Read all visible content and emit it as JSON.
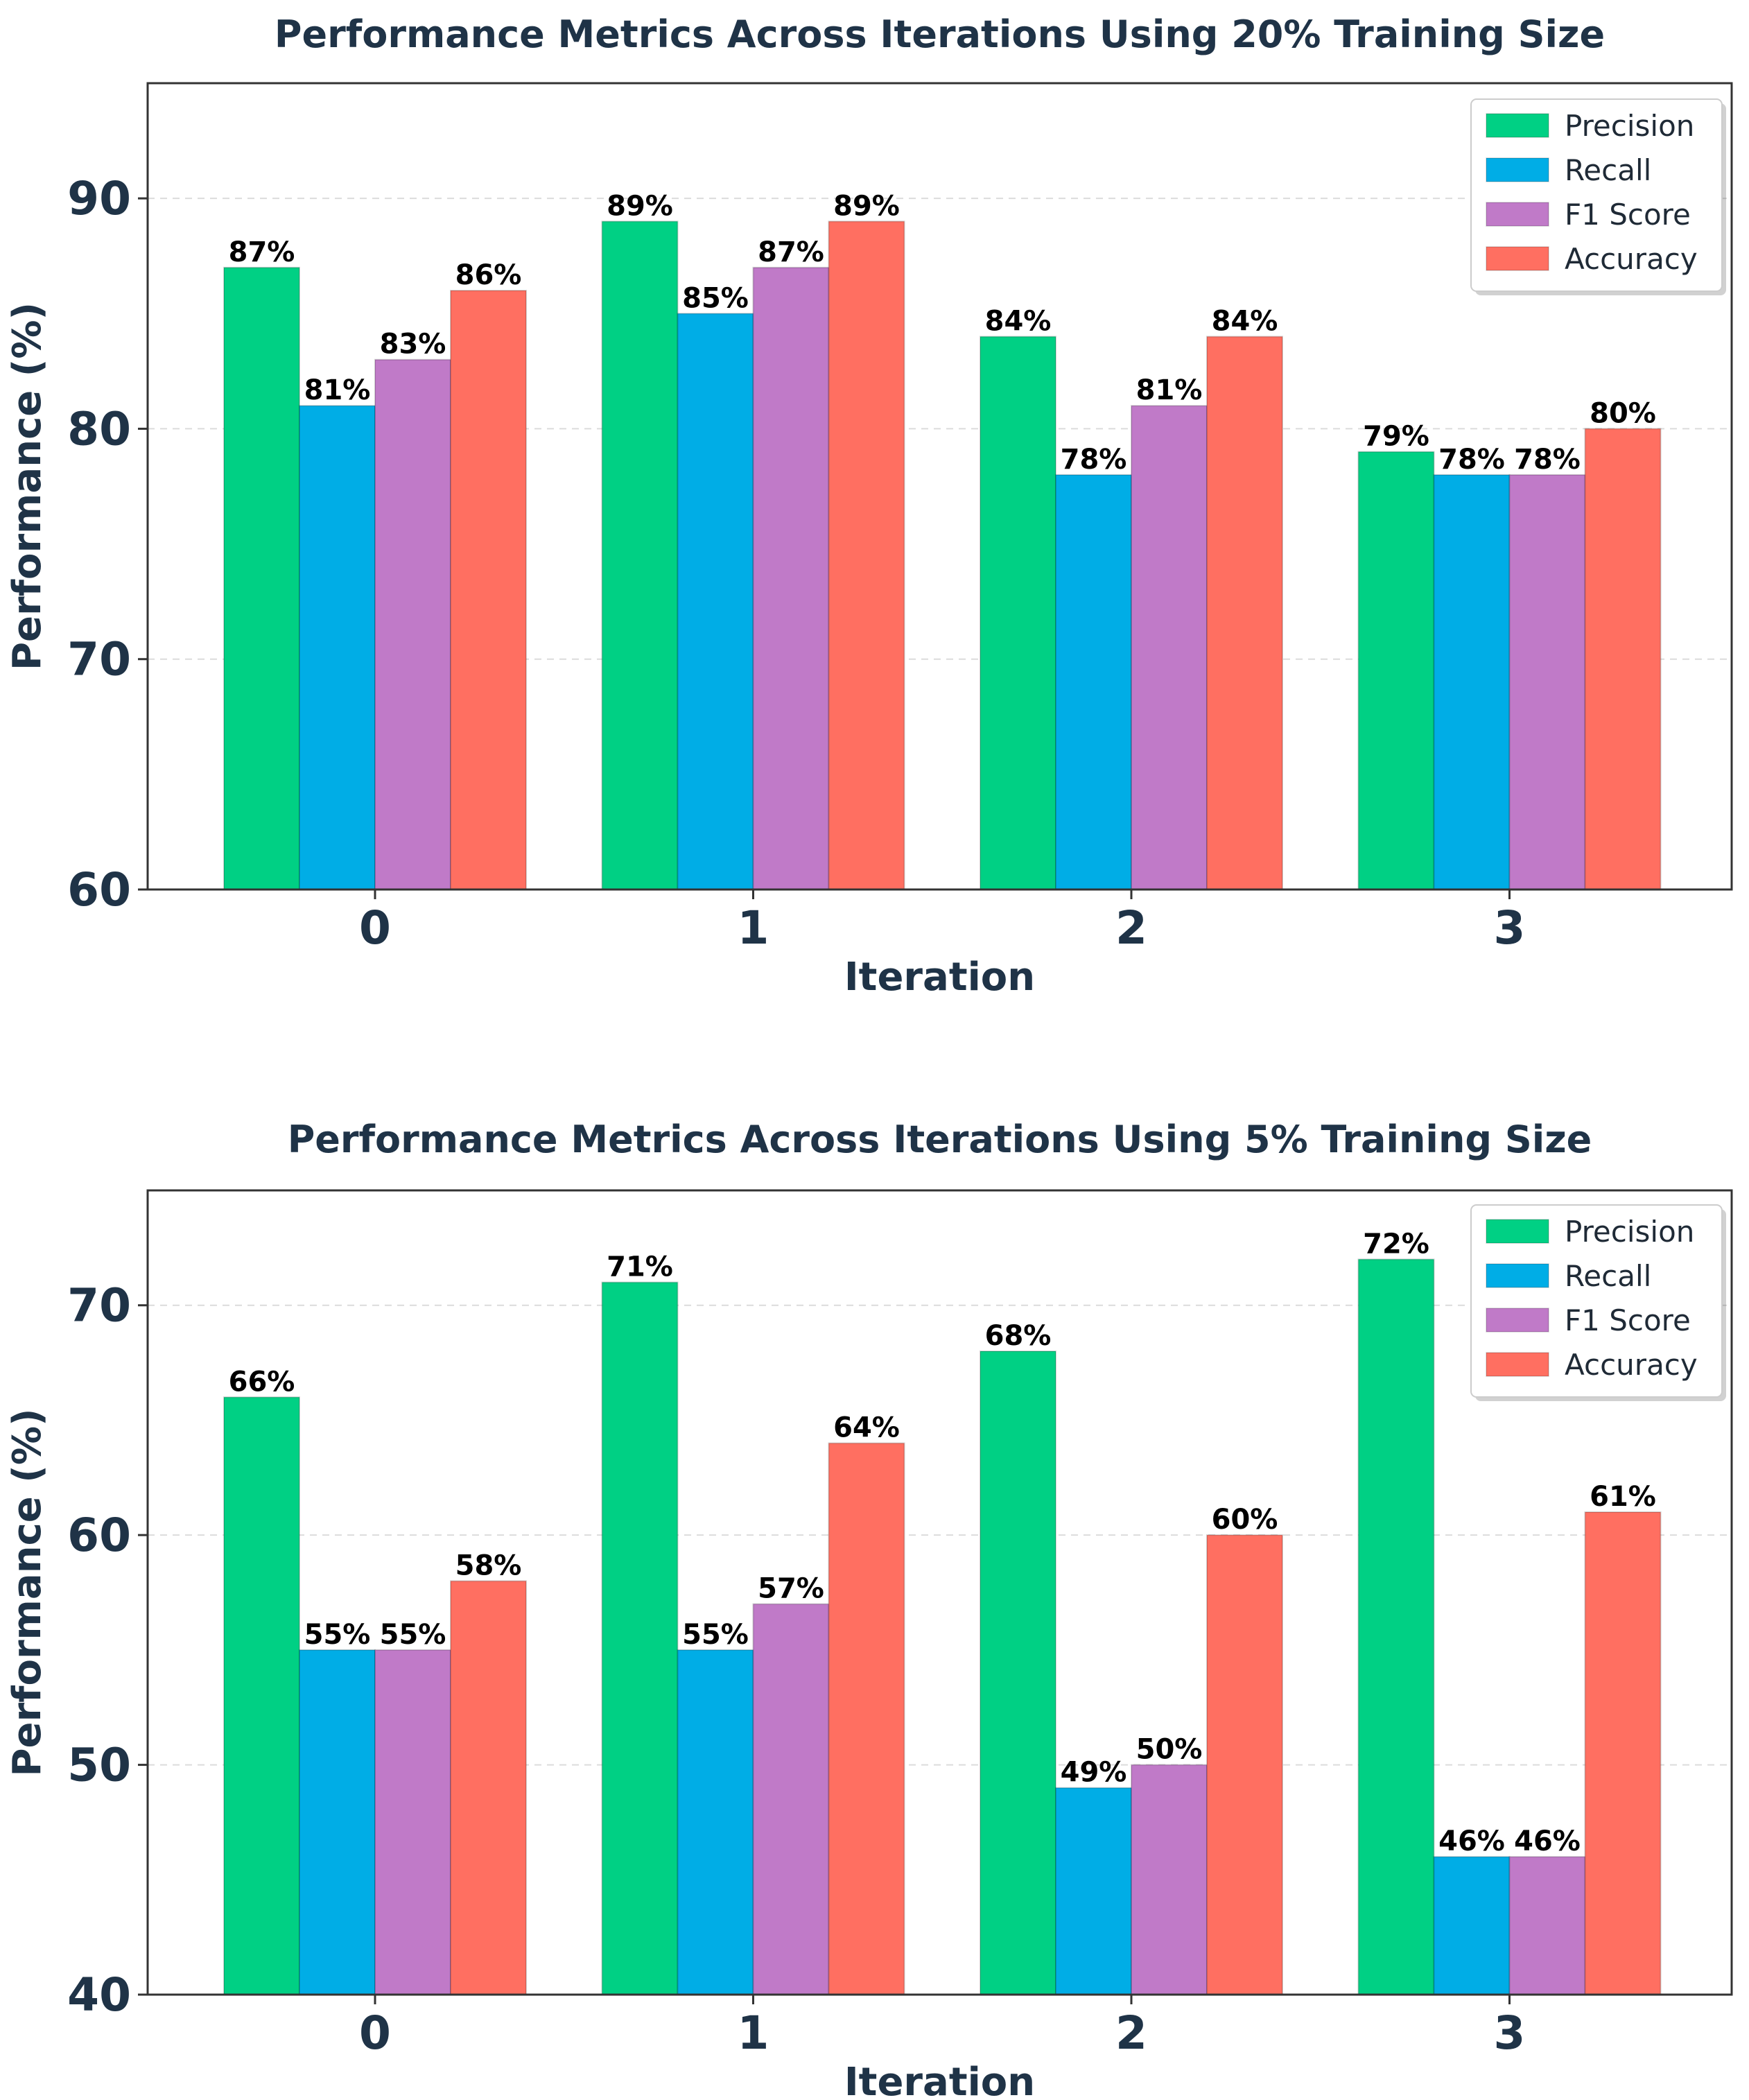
{
  "chart_data": [
    {
      "type": "bar",
      "title": "Performance Metrics Across Iterations Using 20% Training Size",
      "xlabel": "Iteration",
      "ylabel": "Performance (%)",
      "categories": [
        "0",
        "1",
        "2",
        "3"
      ],
      "ylim": [
        60,
        95
      ],
      "yticks": [
        60,
        70,
        80,
        90
      ],
      "grid": true,
      "legend_position": "top-right",
      "series": [
        {
          "name": "Precision",
          "color": "#00d084",
          "values": [
            87,
            89,
            84,
            79
          ]
        },
        {
          "name": "Recall",
          "color": "#00ade6",
          "values": [
            81,
            85,
            78,
            78
          ]
        },
        {
          "name": "F1 Score",
          "color": "#c07ac8",
          "values": [
            83,
            87,
            81,
            78
          ]
        },
        {
          "name": "Accuracy",
          "color": "#ff6f61",
          "values": [
            86,
            89,
            84,
            80
          ]
        }
      ],
      "value_suffix": "%"
    },
    {
      "type": "bar",
      "title": "Performance Metrics Across Iterations Using 5% Training Size",
      "xlabel": "Iteration",
      "ylabel": "Performance (%)",
      "categories": [
        "0",
        "1",
        "2",
        "3"
      ],
      "ylim": [
        40,
        75
      ],
      "yticks": [
        40,
        50,
        60,
        70
      ],
      "grid": true,
      "legend_position": "top-right",
      "series": [
        {
          "name": "Precision",
          "color": "#00d084",
          "values": [
            66,
            71,
            68,
            72
          ]
        },
        {
          "name": "Recall",
          "color": "#00ade6",
          "values": [
            55,
            55,
            49,
            46
          ]
        },
        {
          "name": "F1 Score",
          "color": "#c07ac8",
          "values": [
            55,
            57,
            50,
            46
          ]
        },
        {
          "name": "Accuracy",
          "color": "#ff6f61",
          "values": [
            58,
            64,
            60,
            61
          ]
        }
      ],
      "value_suffix": "%"
    }
  ]
}
